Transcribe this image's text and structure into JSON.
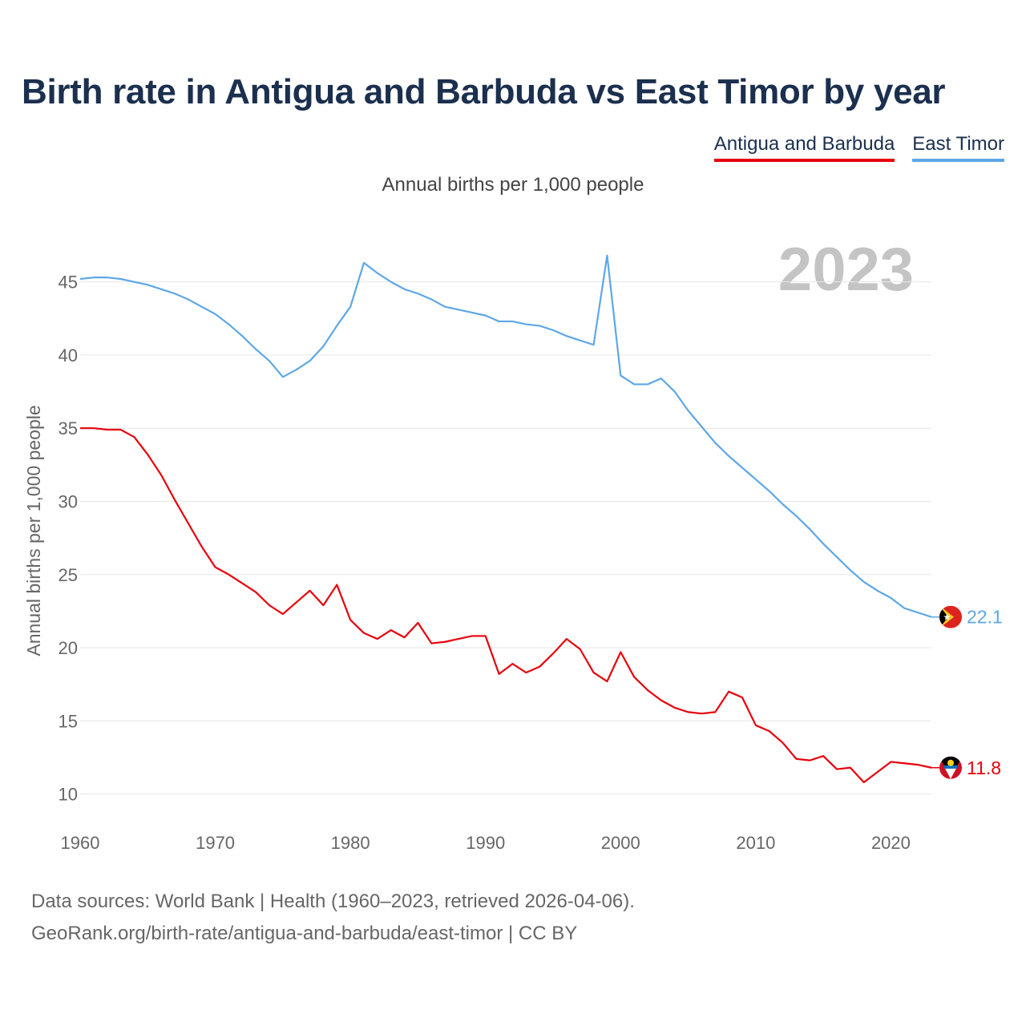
{
  "header": {
    "title": "Birth rate in Antigua and Barbuda vs East Timor by year",
    "subtitle": "Annual births per 1,000 people"
  },
  "legend": [
    {
      "label": "Antigua and Barbuda",
      "color": "#e8000b"
    },
    {
      "label": "East Timor",
      "color": "#5ea7e6"
    }
  ],
  "chart_data": {
    "type": "line",
    "title": "Birth rate in Antigua and Barbuda vs East Timor by year",
    "subtitle": "Annual births per 1,000 people",
    "xlabel": "",
    "ylabel": "Annual births per 1,000 people",
    "xlim": [
      1960,
      2023
    ],
    "ylim": [
      8.5,
      47.5
    ],
    "xticks": [
      1960,
      1970,
      1980,
      1990,
      2000,
      2010,
      2020
    ],
    "yticks": [
      10,
      15,
      20,
      25,
      30,
      35,
      40,
      45
    ],
    "grid": true,
    "year_label": "2023",
    "x": [
      1960,
      1961,
      1962,
      1963,
      1964,
      1965,
      1966,
      1967,
      1968,
      1969,
      1970,
      1971,
      1972,
      1973,
      1974,
      1975,
      1976,
      1977,
      1978,
      1979,
      1980,
      1981,
      1982,
      1983,
      1984,
      1985,
      1986,
      1987,
      1988,
      1989,
      1990,
      1991,
      1992,
      1993,
      1994,
      1995,
      1996,
      1997,
      1998,
      1999,
      2000,
      2001,
      2002,
      2003,
      2004,
      2005,
      2006,
      2007,
      2008,
      2009,
      2010,
      2011,
      2012,
      2013,
      2014,
      2015,
      2016,
      2017,
      2018,
      2019,
      2020,
      2021,
      2022,
      2023
    ],
    "series": [
      {
        "name": "Antigua and Barbuda",
        "color": "#e8000b",
        "end_label": "11.8",
        "flag": "antigua-and-barbuda-flag-icon",
        "values": [
          35.0,
          35.0,
          34.9,
          34.9,
          34.4,
          33.2,
          31.8,
          30.1,
          28.5,
          26.9,
          25.5,
          25.0,
          24.4,
          23.8,
          22.9,
          22.3,
          23.1,
          23.9,
          22.9,
          24.3,
          21.9,
          21.0,
          20.6,
          21.2,
          20.7,
          21.7,
          20.3,
          20.4,
          20.6,
          20.8,
          20.8,
          18.2,
          18.9,
          18.3,
          18.7,
          19.6,
          20.6,
          19.9,
          18.3,
          17.7,
          19.7,
          18.0,
          17.1,
          16.4,
          15.9,
          15.6,
          15.5,
          15.6,
          17.0,
          16.6,
          14.7,
          14.3,
          13.5,
          12.4,
          12.3,
          12.6,
          11.7,
          11.8,
          10.8,
          11.5,
          12.2,
          12.1,
          12.0,
          11.8
        ]
      },
      {
        "name": "East Timor",
        "color": "#5ea7e6",
        "end_label": "22.1",
        "flag": "east-timor-flag-icon",
        "values": [
          45.2,
          45.3,
          45.3,
          45.2,
          45.0,
          44.8,
          44.5,
          44.2,
          43.8,
          43.3,
          42.8,
          42.1,
          41.3,
          40.4,
          39.6,
          38.5,
          39.0,
          39.6,
          40.6,
          42.0,
          43.3,
          46.3,
          45.6,
          45.0,
          44.5,
          44.2,
          43.8,
          43.3,
          43.1,
          42.9,
          42.7,
          42.3,
          42.3,
          42.1,
          42.0,
          41.7,
          41.3,
          41.0,
          40.7,
          46.8,
          38.6,
          38.0,
          38.0,
          38.4,
          37.5,
          36.2,
          35.1,
          34.0,
          33.1,
          32.3,
          31.5,
          30.7,
          29.8,
          29.0,
          28.1,
          27.1,
          26.2,
          25.3,
          24.5,
          23.9,
          23.4,
          22.7,
          22.4,
          22.1
        ]
      }
    ]
  },
  "footer": {
    "source": "Data sources: World Bank | Health (1960–2023, retrieved 2026-04-06).",
    "link": "GeoRank.org/birth-rate/antigua-and-barbuda/east-timor | CC BY"
  }
}
